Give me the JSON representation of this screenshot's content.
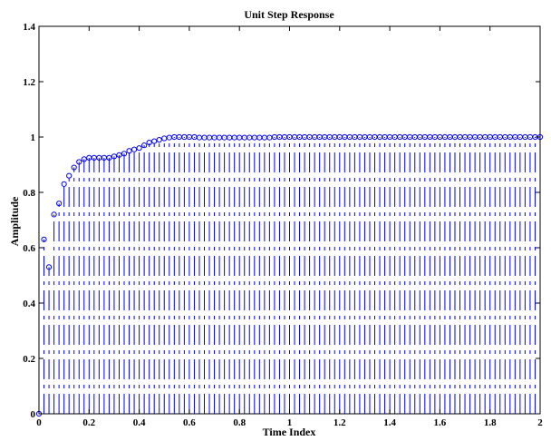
{
  "chart_data": {
    "type": "scatter",
    "style": "stem",
    "title": "Unit Step Response",
    "xlabel": "Time Index",
    "ylabel": "Amplitude",
    "xlim": [
      0,
      2
    ],
    "ylim": [
      0,
      1.4
    ],
    "xticks": [
      "0",
      "0.2",
      "0.4",
      "0.6",
      "0.8",
      "1",
      "1.2",
      "1.4",
      "1.6",
      "1.8",
      "2"
    ],
    "yticks": [
      "0",
      "0.2",
      "0.4",
      "0.6",
      "0.8",
      "1",
      "1.2",
      "1.4"
    ],
    "grid": false,
    "sample_step": 0.02,
    "colors": {
      "stem": "#0000ff",
      "axes": "#000000"
    },
    "series": [
      {
        "x": [
          0,
          0.02,
          0.04,
          0.06,
          0.08,
          0.1,
          0.12,
          0.14,
          0.16,
          0.18,
          0.2,
          0.22,
          0.24,
          0.26,
          0.28,
          0.3,
          0.32,
          0.34,
          0.36,
          0.38,
          0.4,
          0.42,
          0.44,
          0.46,
          0.48,
          0.5,
          0.52,
          0.54,
          0.56,
          0.58,
          0.6,
          0.62,
          0.64,
          0.66,
          0.68,
          0.7,
          0.72,
          0.74,
          0.76,
          0.78,
          0.8,
          0.82,
          0.84,
          0.86,
          0.88,
          0.9,
          0.92,
          0.94,
          0.96,
          0.98,
          1,
          1.02,
          1.04,
          1.06,
          1.08,
          1.1,
          1.12,
          1.14,
          1.16,
          1.18,
          1.2,
          1.22,
          1.24,
          1.26,
          1.28,
          1.3,
          1.32,
          1.34,
          1.36,
          1.38,
          1.4,
          1.42,
          1.44,
          1.46,
          1.48,
          1.5,
          1.52,
          1.54,
          1.56,
          1.58,
          1.6,
          1.62,
          1.64,
          1.66,
          1.68,
          1.7,
          1.72,
          1.74,
          1.76,
          1.78,
          1.8,
          1.82,
          1.84,
          1.86,
          1.88,
          1.9,
          1.92,
          1.94,
          1.96,
          1.98,
          2
        ],
        "y": [
          0,
          0.63,
          0.53,
          0.72,
          0.76,
          0.83,
          0.86,
          0.89,
          0.91,
          0.92,
          0.925,
          0.925,
          0.925,
          0.925,
          0.925,
          0.93,
          0.935,
          0.94,
          0.95,
          0.955,
          0.96,
          0.97,
          0.98,
          0.985,
          0.99,
          0.995,
          0.998,
          1.0,
          1.0,
          1.0,
          1.0,
          1.0,
          0.998,
          0.998,
          0.998,
          0.998,
          0.998,
          0.998,
          0.998,
          0.998,
          0.998,
          0.998,
          0.998,
          0.998,
          0.998,
          0.998,
          0.998,
          1.0,
          1.0,
          1.0,
          1.0,
          1.0,
          1.0,
          1.0,
          1.0,
          1.0,
          1.0,
          1.0,
          1.0,
          1.0,
          1.0,
          1.0,
          1.0,
          1.0,
          1.0,
          1.0,
          1.0,
          1.0,
          1.0,
          1.0,
          1.0,
          1.0,
          1.0,
          1.0,
          1.0,
          1.0,
          1.0,
          1.0,
          1.0,
          1.0,
          1.0,
          1.0,
          1.0,
          1.0,
          1.0,
          1.0,
          1.0,
          1.0,
          1.0,
          1.0,
          1.0,
          1.0,
          1.0,
          1.0,
          1.0,
          1.0,
          1.0,
          1.0,
          1.0,
          1.0,
          1.0
        ]
      }
    ]
  }
}
